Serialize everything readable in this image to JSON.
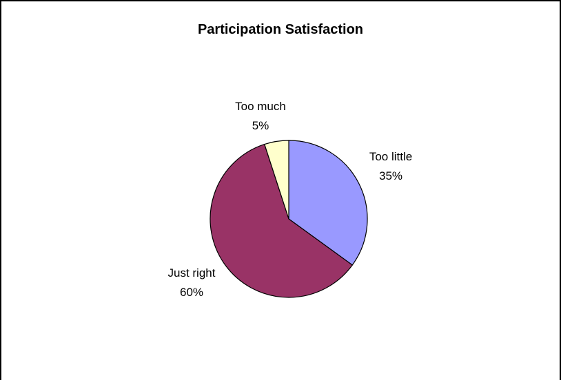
{
  "chart_data": {
    "type": "pie",
    "title": "Participation Satisfaction",
    "categories": [
      "Too little",
      "Just right",
      "Too much"
    ],
    "values": [
      35,
      60,
      5
    ],
    "value_labels": [
      "35%",
      "60%",
      "5%"
    ],
    "colors": [
      "#9999FF",
      "#993366",
      "#FFFFCC"
    ],
    "legend": "none"
  }
}
